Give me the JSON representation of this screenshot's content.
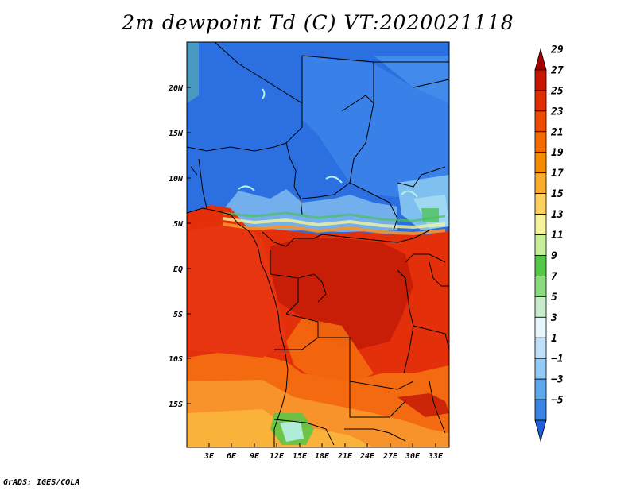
{
  "title": "2m dewpoint Td (C) VT:2020021118",
  "credit": "GrADS: IGES/COLA",
  "lat_labels": [
    "20N",
    "15N",
    "10N",
    "5N",
    "EQ",
    "5S",
    "10S",
    "15S"
  ],
  "lon_labels": [
    "3E",
    "6E",
    "9E",
    "12E",
    "15E",
    "18E",
    "21E",
    "24E",
    "27E",
    "30E",
    "33E"
  ],
  "colorbar": {
    "levels": [
      "29",
      "27",
      "25",
      "23",
      "21",
      "19",
      "17",
      "15",
      "13",
      "11",
      "9",
      "7",
      "5",
      "3",
      "1",
      "−1",
      "−3",
      "−5"
    ],
    "colors": [
      "#a50000",
      "#c81400",
      "#e12d00",
      "#ef4b00",
      "#f46a00",
      "#f88c00",
      "#fbac2a",
      "#fdd15c",
      "#f5f49a",
      "#c7ef9b",
      "#55c848",
      "#8bd980",
      "#c6eccb",
      "#e7f6fb",
      "#bfe0fb",
      "#93c9f5",
      "#5fa8ef",
      "#3a84e6",
      "#1d5fd6"
    ]
  },
  "map": {
    "palette": {
      "red": "#e4300a",
      "darkred": "#c81e08",
      "orange": "#f46a10",
      "lightorange": "#f8922a",
      "yellow": "#fbb23a",
      "blue": "#2c6fe0",
      "midblue": "#3a86ea",
      "lightblue": "#7cb6f2",
      "green": "#4cc05a",
      "cyan": "#b8f0e8"
    }
  }
}
